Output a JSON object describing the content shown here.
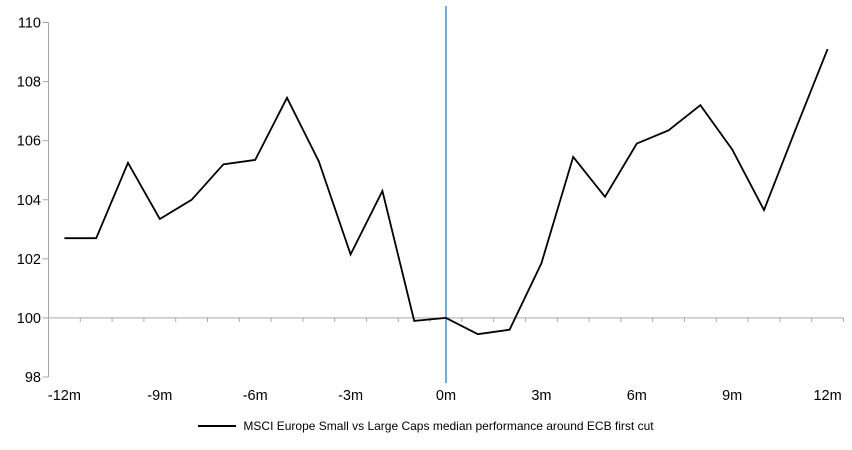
{
  "chart_data": {
    "type": "line",
    "title": "",
    "xlabel": "",
    "ylabel": "",
    "x_unit": "months relative to ECB first cut",
    "x": [
      -12,
      -11,
      -10,
      -9,
      -8,
      -7,
      -6,
      -5,
      -4,
      -3,
      -2,
      -1,
      0,
      1,
      2,
      3,
      4,
      5,
      6,
      7,
      8,
      9,
      10,
      11,
      12
    ],
    "series": [
      {
        "name": "MSCI Europe Small vs Large Caps median performance around ECB first cut",
        "color": "#000000",
        "values": [
          102.7,
          102.7,
          105.25,
          103.35,
          104.0,
          105.2,
          105.35,
          107.45,
          105.3,
          102.15,
          104.3,
          99.9,
          100.0,
          99.45,
          99.6,
          101.85,
          105.45,
          104.1,
          105.9,
          106.35,
          107.2,
          105.7,
          103.65,
          106.4,
          109.1
        ]
      }
    ],
    "ylim": [
      98,
      110
    ],
    "yticks": [
      98,
      100,
      102,
      104,
      106,
      108,
      110
    ],
    "ytick_labels": [
      "98",
      "100",
      "102",
      "104",
      "106",
      "108",
      "110"
    ],
    "xticks": [
      -12,
      -9,
      -6,
      -3,
      0,
      3,
      6,
      9,
      12
    ],
    "xtick_labels": [
      "-12m",
      "-9m",
      "-6m",
      "-3m",
      "0m",
      "3m",
      "6m",
      "9m",
      "12m"
    ],
    "baseline_value": 100,
    "event_line": {
      "x": 0,
      "color": "#74A9D8"
    },
    "grid": false,
    "axis_color": "#A6A6A6",
    "text_color": "#000000",
    "legend_position": "bottom"
  },
  "legend": {
    "label": "MSCI Europe Small vs Large Caps median performance around ECB first cut"
  }
}
